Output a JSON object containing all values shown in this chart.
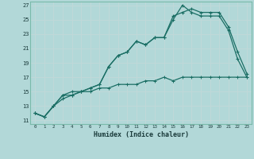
{
  "xlabel": "Humidex (Indice chaleur)",
  "xlim": [
    -0.5,
    23.5
  ],
  "ylim": [
    10.5,
    27.5
  ],
  "yticks": [
    11,
    13,
    15,
    17,
    19,
    21,
    23,
    25,
    27
  ],
  "xticks": [
    0,
    1,
    2,
    3,
    4,
    5,
    6,
    7,
    8,
    9,
    10,
    11,
    12,
    13,
    14,
    15,
    16,
    17,
    18,
    19,
    20,
    21,
    22,
    23
  ],
  "background_color": "#b2d8d8",
  "grid_color": "#d0e8e8",
  "line_color": "#1a6e64",
  "line1_x": [
    0,
    1,
    2,
    3,
    4,
    5,
    6,
    7,
    8,
    9,
    10,
    11,
    12,
    13,
    14,
    15,
    16,
    17,
    18,
    19,
    20,
    21,
    22,
    23
  ],
  "line1_y": [
    12.0,
    11.5,
    13.0,
    14.5,
    15.0,
    15.0,
    15.5,
    16.0,
    18.5,
    20.0,
    20.5,
    22.0,
    21.5,
    22.5,
    22.5,
    25.0,
    27.0,
    26.0,
    25.5,
    25.5,
    25.5,
    23.5,
    19.5,
    17.0
  ],
  "line2_x": [
    0,
    1,
    2,
    3,
    4,
    5,
    6,
    7,
    8,
    9,
    10,
    11,
    12,
    13,
    14,
    15,
    16,
    17,
    18,
    19,
    20,
    21,
    22,
    23
  ],
  "line2_y": [
    12.0,
    11.5,
    13.0,
    14.5,
    14.5,
    15.0,
    15.5,
    16.0,
    18.5,
    20.0,
    20.5,
    22.0,
    21.5,
    22.5,
    22.5,
    25.5,
    26.0,
    26.5,
    26.0,
    26.0,
    26.0,
    24.0,
    20.5,
    17.5
  ],
  "line3_x": [
    0,
    1,
    2,
    3,
    4,
    5,
    6,
    7,
    8,
    9,
    10,
    11,
    12,
    13,
    14,
    15,
    16,
    17,
    18,
    19,
    20,
    21,
    22,
    23
  ],
  "line3_y": [
    12.0,
    11.5,
    13.0,
    14.0,
    14.5,
    15.0,
    15.0,
    15.5,
    15.5,
    16.0,
    16.0,
    16.0,
    16.5,
    16.5,
    17.0,
    16.5,
    17.0,
    17.0,
    17.0,
    17.0,
    17.0,
    17.0,
    17.0,
    17.0
  ]
}
